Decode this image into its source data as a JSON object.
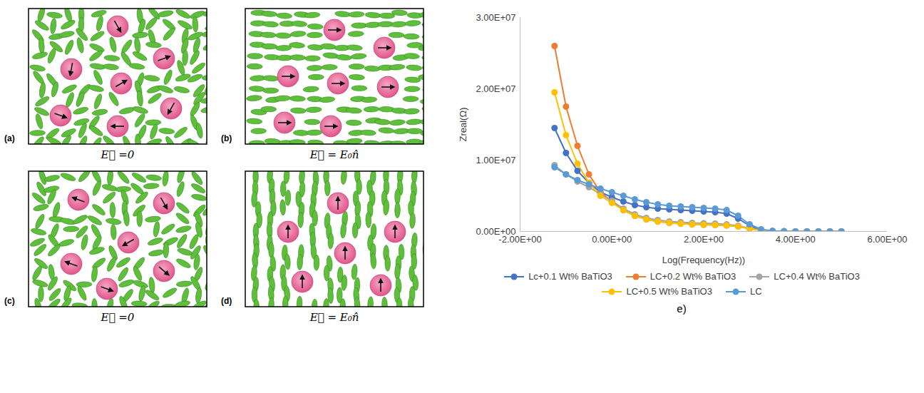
{
  "chart_data": {
    "type": "line",
    "x_label": "Log(Frequency(Hz))",
    "y_label": "Zreal(Ω)",
    "x": [
      -1.25,
      -1,
      -0.75,
      -0.5,
      -0.25,
      0,
      0.25,
      0.5,
      0.75,
      1,
      1.25,
      1.5,
      1.75,
      2,
      2.25,
      2.5,
      2.75,
      3,
      3.25,
      3.5,
      3.75,
      4,
      4.25,
      4.5,
      4.75,
      5
    ],
    "series": [
      {
        "name": "Lc+0.1 Wt% BaTiO3",
        "color": "#4472c4",
        "marker": "circle",
        "values": [
          14500000,
          11000000,
          8500000,
          6800000,
          5500000,
          4800000,
          4200000,
          3700000,
          3400000,
          3200000,
          3100000,
          3000000,
          2900000,
          2800000,
          2700000,
          2500000,
          1800000,
          800000,
          200000,
          60000,
          20000,
          10000,
          0,
          0,
          0,
          0
        ]
      },
      {
        "name": "LC+0.2 Wt% BaTiO3",
        "color": "#ed7d31",
        "marker": "circle",
        "values": [
          26000000,
          17500000,
          12000000,
          8000000,
          5500000,
          4200000,
          3000000,
          2200000,
          1700000,
          1400000,
          1200000,
          1100000,
          1000000,
          950000,
          900000,
          850000,
          700000,
          400000,
          150000,
          50000,
          20000,
          10000,
          0,
          0,
          0,
          0
        ]
      },
      {
        "name": "LC+0.4 Wt% BaTiO3",
        "color": "#a5a5a5",
        "marker": "circle",
        "values": [
          9300000,
          8000000,
          7000000,
          6200000,
          5200000,
          4300000,
          3200000,
          2400000,
          1900000,
          1600000,
          1400000,
          1300000,
          1200000,
          1150000,
          1100000,
          1000000,
          800000,
          450000,
          150000,
          50000,
          20000,
          10000,
          0,
          0,
          0,
          0
        ]
      },
      {
        "name": "LC+0.5 Wt% BaTiO3",
        "color": "#ffc000",
        "marker": "circle",
        "values": [
          19500000,
          13500000,
          9500000,
          6800000,
          5000000,
          4000000,
          3000000,
          2200000,
          1700000,
          1400000,
          1200000,
          1100000,
          1000000,
          950000,
          900000,
          850000,
          700000,
          400000,
          150000,
          50000,
          20000,
          10000,
          0,
          0,
          0,
          0
        ]
      },
      {
        "name": "LC",
        "color": "#5b9bd5",
        "marker": "circle",
        "values": [
          9000000,
          8000000,
          7200000,
          6600000,
          6000000,
          5500000,
          5000000,
          4500000,
          4100000,
          3800000,
          3600000,
          3500000,
          3400000,
          3300000,
          3200000,
          3000000,
          2200000,
          1000000,
          300000,
          80000,
          30000,
          10000,
          0,
          0,
          0,
          0
        ]
      }
    ],
    "xlim": [
      -2,
      6
    ],
    "xticks": [
      {
        "value": -2,
        "label": "-2.00E+00"
      },
      {
        "value": 0,
        "label": "0.00E+00"
      },
      {
        "value": 2,
        "label": "2.00E+00"
      },
      {
        "value": 4,
        "label": "4.00E+00"
      },
      {
        "value": 6,
        "label": "6.00E+00"
      }
    ],
    "ylim": [
      0,
      30000000
    ],
    "yticks": [
      {
        "value": 0,
        "label": "0.00E+00"
      },
      {
        "value": 10000000,
        "label": "1.00E+07"
      },
      {
        "value": 20000000,
        "label": "2.00E+07"
      },
      {
        "value": 30000000,
        "label": "3.00E+07"
      }
    ],
    "grid": false,
    "legend": "bottom",
    "panel_label": "e)"
  },
  "diagram": {
    "panels": [
      {
        "label": "(a)",
        "caption": "E⃗ =0"
      },
      {
        "label": "(b)",
        "caption": "E⃗ = E₀n̂"
      },
      {
        "label": "(c)",
        "caption": "E⃗ =0"
      },
      {
        "label": "(d)",
        "caption": "E⃗ = E₀n̂"
      }
    ]
  }
}
